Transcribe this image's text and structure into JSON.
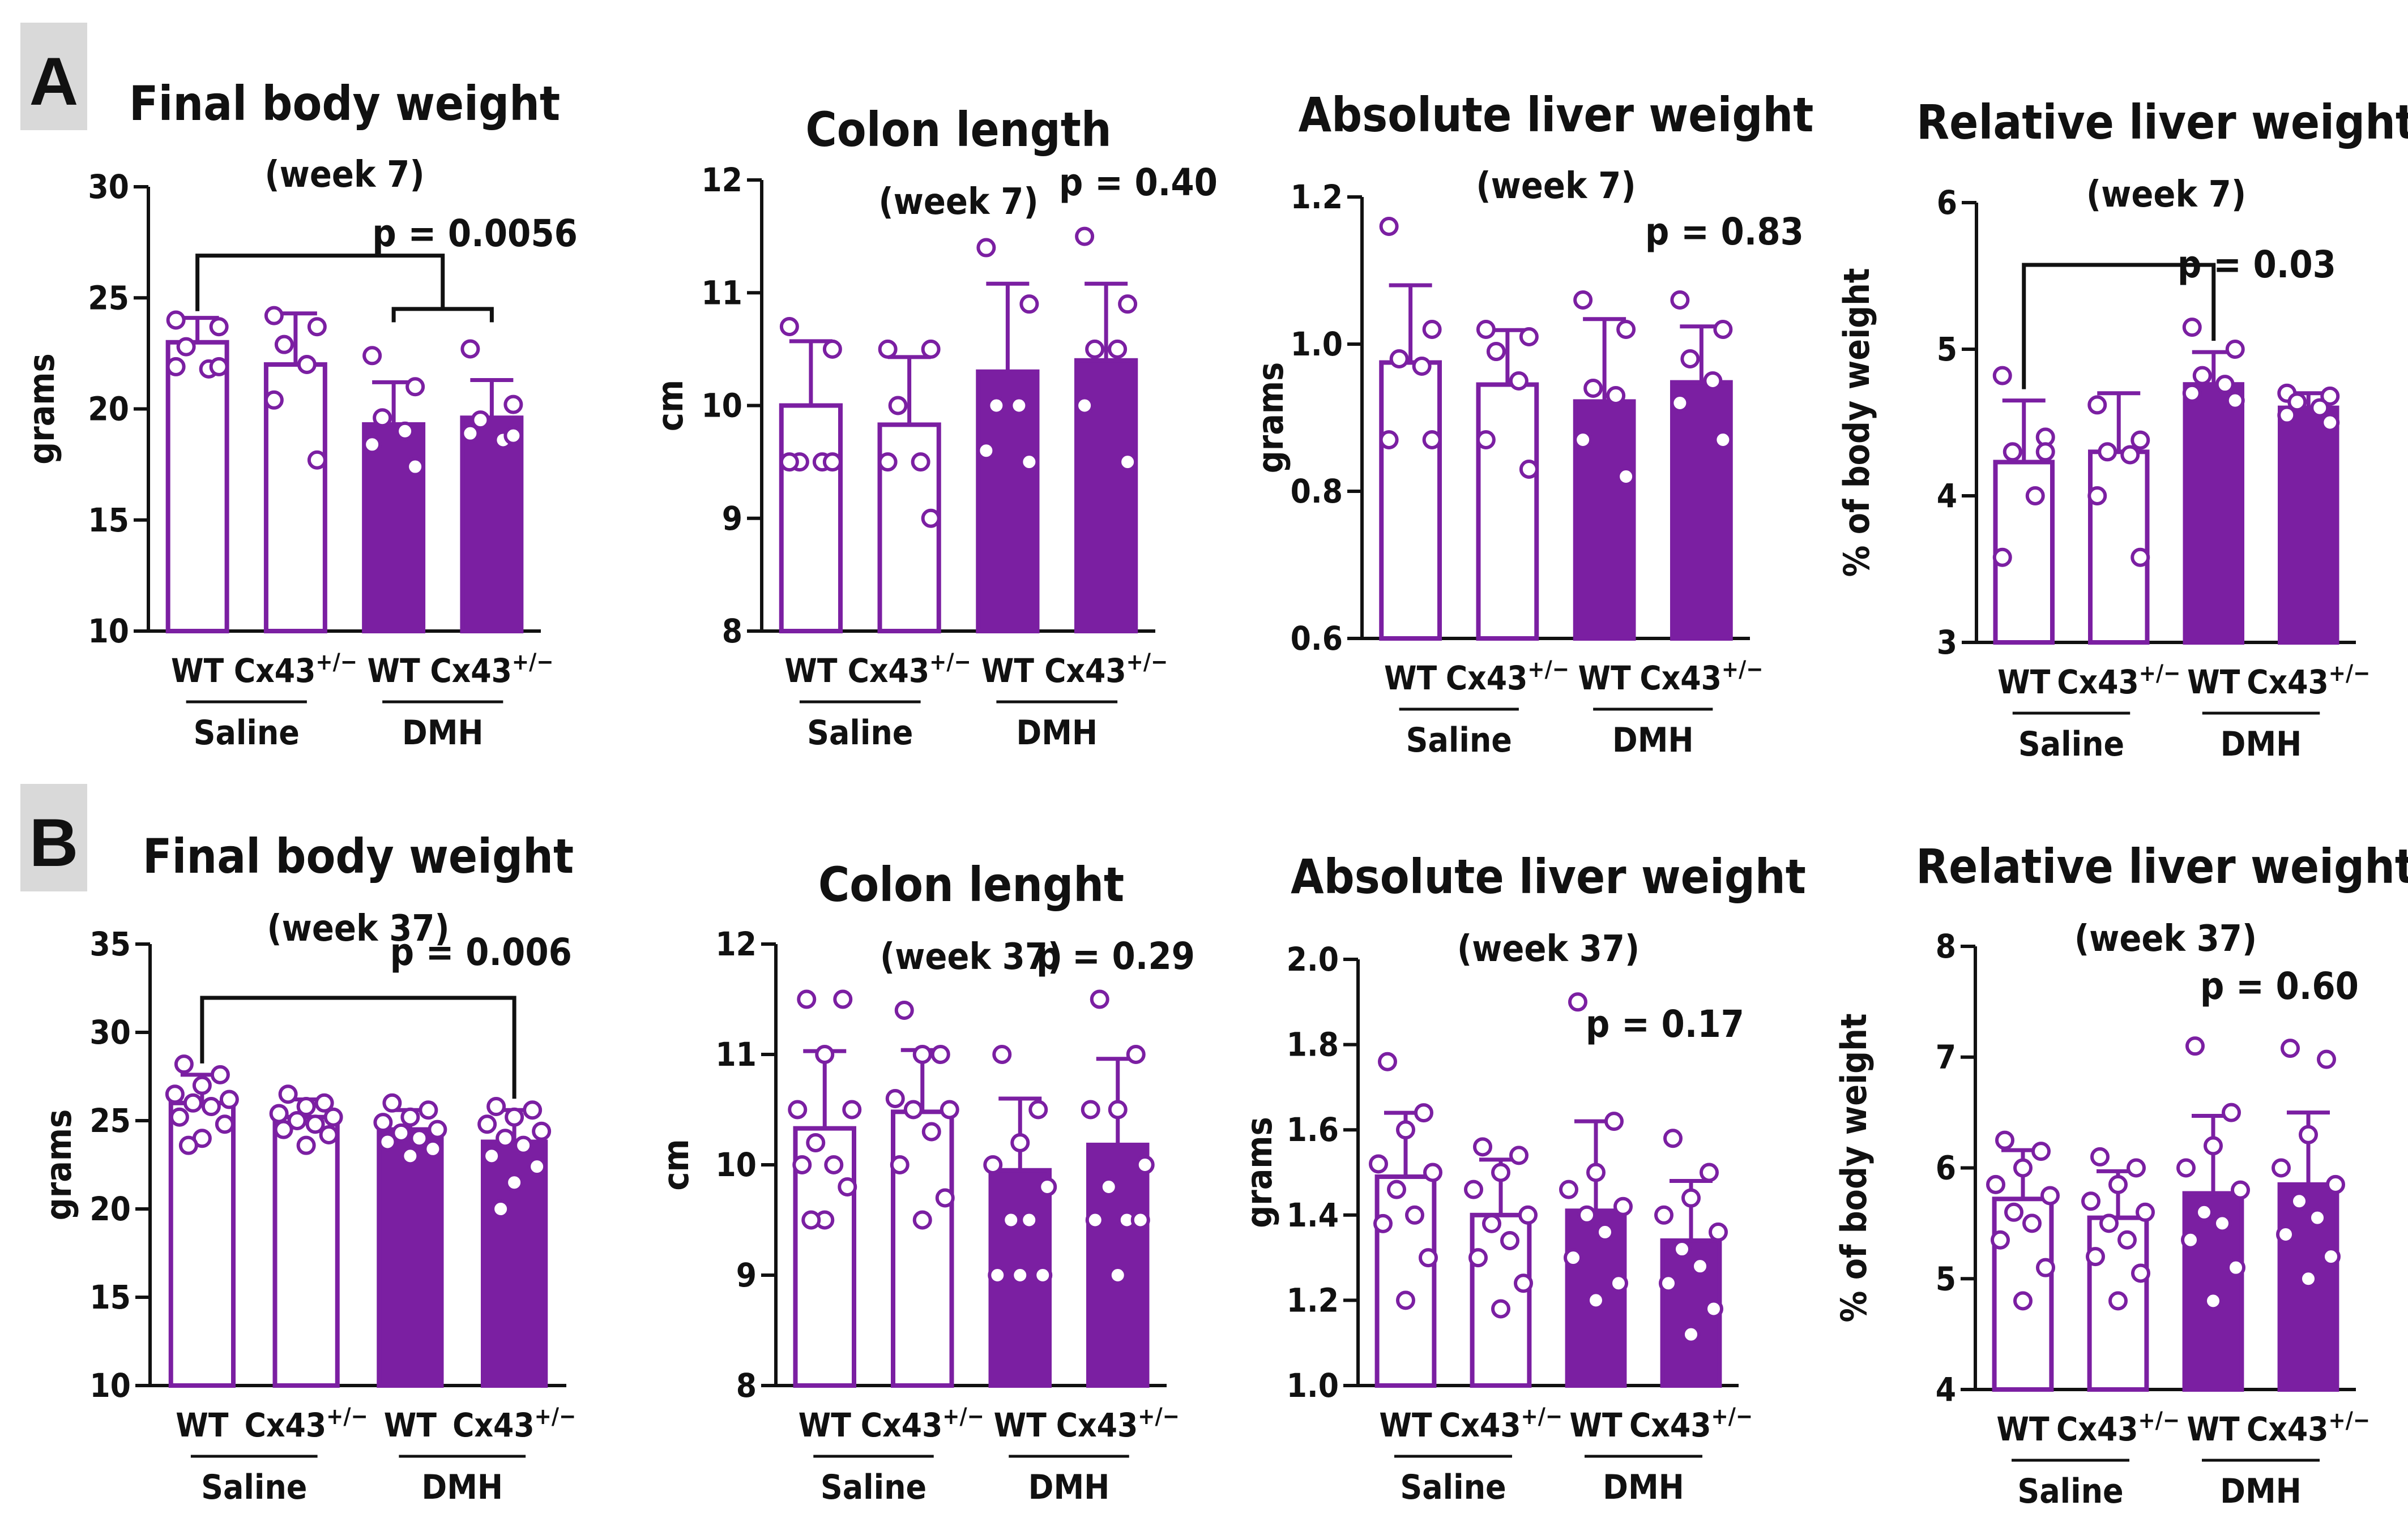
{
  "colors": {
    "purple": "#7b1fa2",
    "text": "#111111",
    "letter_box": "#d9d9d9"
  },
  "panel_letters": [
    "A",
    "B"
  ],
  "chart_data": [
    {
      "type": "bar",
      "panel": "A",
      "title": "Final body weight",
      "subtitle": "(week 7)",
      "ylabel": "grams",
      "ylim": [
        10,
        30
      ],
      "yticks": [
        10,
        15,
        20,
        25,
        30
      ],
      "ytick_labels": [
        "10",
        "15",
        "20",
        "25",
        "30"
      ],
      "categories": [
        "WT",
        "Cx43+/−",
        "WT",
        "Cx43+/−"
      ],
      "group_labels": [
        "Saline",
        "DMH"
      ],
      "filled": [
        false,
        false,
        true,
        true
      ],
      "means": [
        23.0,
        22.0,
        19.3,
        19.6
      ],
      "sd": [
        1.1,
        2.3,
        1.9,
        1.7
      ],
      "points": [
        [
          24.0,
          23.7,
          22.8,
          21.8,
          21.9,
          21.9
        ],
        [
          24.2,
          23.7,
          22.9,
          22.0,
          20.4,
          17.7
        ],
        [
          22.4,
          21.0,
          19.6,
          19.0,
          18.4,
          17.4
        ],
        [
          22.7,
          20.2,
          19.5,
          18.6,
          18.9,
          18.8
        ]
      ],
      "p_value": "p = 0.0056",
      "brackets": [
        {
          "from": 0,
          "to": 3
        },
        {
          "from": 2,
          "to": 3
        }
      ]
    },
    {
      "type": "bar",
      "panel": "A",
      "title": "Colon length",
      "subtitle": "(week 7)",
      "ylabel": "cm",
      "ylim": [
        8,
        12
      ],
      "yticks": [
        8,
        9,
        10,
        11,
        12
      ],
      "ytick_labels": [
        "8",
        "9",
        "10",
        "11",
        "12"
      ],
      "categories": [
        "WT",
        "Cx43+/−",
        "WT",
        "Cx43+/−"
      ],
      "group_labels": [
        "Saline",
        "DMH"
      ],
      "filled": [
        false,
        false,
        true,
        true
      ],
      "means": [
        10.0,
        9.83,
        10.3,
        10.4
      ],
      "sd": [
        0.57,
        0.6,
        0.78,
        0.68
      ],
      "points": [
        [
          10.7,
          10.5,
          9.5,
          9.5,
          9.5,
          9.5
        ],
        [
          10.5,
          10.5,
          10.0,
          9.5,
          9.5,
          9.0
        ],
        [
          11.4,
          10.9,
          10.0,
          10.0,
          9.6,
          9.5
        ],
        [
          11.5,
          10.9,
          10.5,
          10.5,
          10.0,
          9.5
        ]
      ],
      "p_value": "p = 0.40",
      "brackets": []
    },
    {
      "type": "bar",
      "panel": "A",
      "title": "Absolute liver weight",
      "subtitle": "(week 7)",
      "ylabel": "grams",
      "ylim": [
        0.6,
        1.2
      ],
      "yticks": [
        0.6,
        0.8,
        1.0,
        1.2
      ],
      "ytick_labels": [
        "0.6",
        "0.8",
        "1.0",
        "1.2"
      ],
      "categories": [
        "WT",
        "Cx43+/−",
        "WT",
        "Cx43+/−"
      ],
      "group_labels": [
        "Saline",
        "DMH"
      ],
      "filled": [
        false,
        false,
        true,
        true
      ],
      "means": [
        0.975,
        0.945,
        0.922,
        0.948
      ],
      "sd": [
        0.105,
        0.074,
        0.112,
        0.076
      ],
      "points": [
        [
          1.16,
          1.02,
          0.98,
          0.97,
          0.87,
          0.87
        ],
        [
          1.02,
          1.01,
          0.99,
          0.95,
          0.87,
          0.83
        ],
        [
          1.06,
          1.02,
          0.94,
          0.93,
          0.87,
          0.82
        ],
        [
          1.06,
          1.02,
          0.98,
          0.95,
          0.92,
          0.87
        ]
      ],
      "p_value": "p = 0.83",
      "brackets": []
    },
    {
      "type": "bar",
      "panel": "A",
      "title": "Relative liver weight",
      "subtitle": "(week 7)",
      "ylabel": "% of body weight",
      "ylim": [
        3,
        6
      ],
      "yticks": [
        3,
        4,
        5,
        6
      ],
      "ytick_labels": [
        "3",
        "4",
        "5",
        "6"
      ],
      "categories": [
        "WT",
        "Cx43+/−",
        "WT",
        "Cx43+/−"
      ],
      "group_labels": [
        "Saline",
        "DMH"
      ],
      "filled": [
        false,
        false,
        true,
        true
      ],
      "means": [
        4.23,
        4.3,
        4.76,
        4.6
      ],
      "sd": [
        0.42,
        0.4,
        0.22,
        0.1
      ],
      "points": [
        [
          4.82,
          4.4,
          4.3,
          4.0,
          3.58,
          4.3
        ],
        [
          4.62,
          4.38,
          4.3,
          4.28,
          4.0,
          3.58
        ],
        [
          5.15,
          5.0,
          4.82,
          4.76,
          4.7,
          4.65
        ],
        [
          4.7,
          4.68,
          4.64,
          4.6,
          4.55,
          4.5
        ]
      ],
      "p_value": "p = 0.03",
      "brackets": [
        {
          "from": 0,
          "to": 2
        }
      ]
    },
    {
      "type": "bar",
      "panel": "B",
      "title": "Final body weight",
      "subtitle": "(week 37)",
      "ylabel": "grams",
      "ylim": [
        10,
        35
      ],
      "yticks": [
        10,
        15,
        20,
        25,
        30,
        35
      ],
      "ytick_labels": [
        "10",
        "15",
        "20",
        "25",
        "30",
        "35"
      ],
      "categories": [
        "WT",
        "Cx43+/−",
        "WT",
        "Cx43+/−"
      ],
      "group_labels": [
        "Saline",
        "DMH"
      ],
      "filled": [
        false,
        false,
        true,
        true
      ],
      "means": [
        26.0,
        25.2,
        24.5,
        23.8
      ],
      "sd": [
        1.6,
        1.0,
        1.1,
        1.8
      ],
      "points": [
        [
          28.2,
          27.6,
          27.0,
          26.5,
          26.2,
          26.0,
          25.8,
          25.2,
          24.8,
          24.0,
          23.6
        ],
        [
          26.5,
          26.0,
          25.8,
          25.4,
          25.2,
          25.0,
          24.8,
          24.5,
          24.2,
          23.6
        ],
        [
          26.0,
          25.6,
          25.2,
          24.9,
          24.5,
          24.3,
          24.0,
          23.8,
          23.4,
          23.0
        ],
        [
          25.8,
          25.6,
          25.2,
          24.8,
          24.4,
          24.0,
          23.6,
          23.0,
          22.4,
          21.5,
          20.0
        ]
      ],
      "p_value": "p = 0.006",
      "brackets": [
        {
          "from": 0,
          "to": 3
        }
      ]
    },
    {
      "type": "bar",
      "panel": "B",
      "title": "Colon lenght",
      "subtitle": "(week 37)",
      "ylabel": "cm",
      "ylim": [
        8,
        12
      ],
      "yticks": [
        8,
        9,
        10,
        11,
        12
      ],
      "ytick_labels": [
        "8",
        "9",
        "10",
        "11",
        "12"
      ],
      "categories": [
        "WT",
        "Cx43+/−",
        "WT",
        "Cx43+/−"
      ],
      "group_labels": [
        "Saline",
        "DMH"
      ],
      "filled": [
        false,
        false,
        true,
        true
      ],
      "means": [
        10.33,
        10.48,
        9.95,
        10.18
      ],
      "sd": [
        0.7,
        0.56,
        0.65,
        0.78
      ],
      "points": [
        [
          11.5,
          11.5,
          11.0,
          10.5,
          10.5,
          10.2,
          10.0,
          10.0,
          9.8,
          9.5,
          9.5
        ],
        [
          11.4,
          11.0,
          11.0,
          10.6,
          10.5,
          10.5,
          10.3,
          10.0,
          9.7,
          9.5
        ],
        [
          11.0,
          10.5,
          10.2,
          10.0,
          9.8,
          9.5,
          9.5,
          9.0,
          9.0,
          9.0
        ],
        [
          11.5,
          11.0,
          10.5,
          10.5,
          10.0,
          9.8,
          9.5,
          9.5,
          9.5,
          9.0
        ]
      ],
      "p_value": "p = 0.29",
      "brackets": []
    },
    {
      "type": "bar",
      "panel": "B",
      "title": "Absolute liver weight",
      "subtitle": "(week 37)",
      "ylabel": "grams",
      "ylim": [
        1.0,
        2.0
      ],
      "yticks": [
        1.0,
        1.2,
        1.4,
        1.6,
        1.8,
        2.0
      ],
      "ytick_labels": [
        "1.0",
        "1.2",
        "1.4",
        "1.6",
        "1.8",
        "2.0"
      ],
      "categories": [
        "WT",
        "Cx43+/−",
        "WT",
        "Cx43+/−"
      ],
      "group_labels": [
        "Saline",
        "DMH"
      ],
      "filled": [
        false,
        false,
        true,
        true
      ],
      "means": [
        1.49,
        1.4,
        1.41,
        1.34
      ],
      "sd": [
        0.15,
        0.13,
        0.21,
        0.14
      ],
      "points": [
        [
          1.76,
          1.64,
          1.6,
          1.52,
          1.5,
          1.46,
          1.4,
          1.38,
          1.3,
          1.2
        ],
        [
          1.56,
          1.54,
          1.5,
          1.46,
          1.4,
          1.38,
          1.34,
          1.3,
          1.24,
          1.18
        ],
        [
          1.9,
          1.62,
          1.5,
          1.46,
          1.42,
          1.4,
          1.36,
          1.3,
          1.24,
          1.2
        ],
        [
          1.58,
          1.5,
          1.44,
          1.4,
          1.36,
          1.32,
          1.28,
          1.24,
          1.18,
          1.12
        ]
      ],
      "p_value": "p = 0.17",
      "brackets": []
    },
    {
      "type": "bar",
      "panel": "B",
      "title": "Relative liver weight",
      "subtitle": "(week 37)",
      "ylabel": "% of body weight",
      "ylim": [
        4,
        8
      ],
      "yticks": [
        4,
        5,
        6,
        7,
        8
      ],
      "ytick_labels": [
        "4",
        "5",
        "6",
        "7",
        "8"
      ],
      "categories": [
        "WT",
        "Cx43+/−",
        "WT",
        "Cx43+/−"
      ],
      "group_labels": [
        "Saline",
        "DMH"
      ],
      "filled": [
        false,
        false,
        true,
        true
      ],
      "means": [
        5.72,
        5.55,
        5.77,
        5.85
      ],
      "sd": [
        0.44,
        0.42,
        0.7,
        0.65
      ],
      "points": [
        [
          6.25,
          6.15,
          6.0,
          5.85,
          5.75,
          5.6,
          5.5,
          5.35,
          5.1,
          4.8
        ],
        [
          6.1,
          6.0,
          5.85,
          5.7,
          5.6,
          5.5,
          5.35,
          5.2,
          5.05,
          4.8
        ],
        [
          7.1,
          6.5,
          6.2,
          6.0,
          5.8,
          5.6,
          5.5,
          5.35,
          5.1,
          4.8
        ],
        [
          7.08,
          6.98,
          6.3,
          6.0,
          5.85,
          5.7,
          5.55,
          5.4,
          5.2,
          5.0
        ]
      ],
      "p_value": "p = 0.60",
      "brackets": []
    }
  ]
}
